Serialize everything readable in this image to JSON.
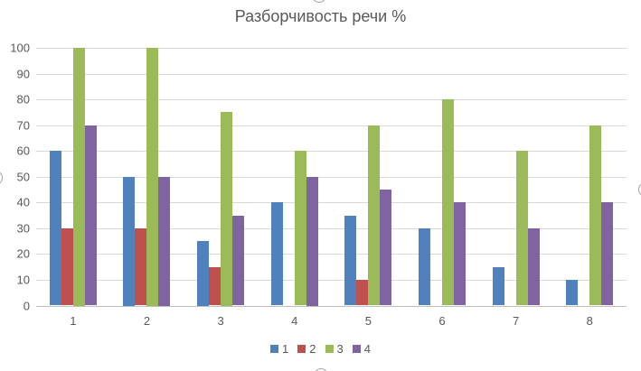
{
  "chart_data": {
    "type": "bar",
    "title": "Разборчивость речи %",
    "categories": [
      "1",
      "2",
      "3",
      "4",
      "5",
      "6",
      "7",
      "8"
    ],
    "series": [
      {
        "name": "1",
        "color": "#4F81BD",
        "values": [
          60,
          50,
          25,
          40,
          35,
          30,
          15,
          10
        ]
      },
      {
        "name": "2",
        "color": "#C0504D",
        "values": [
          30,
          30,
          15,
          0,
          10,
          0,
          0,
          0
        ]
      },
      {
        "name": "3",
        "color": "#9BBB59",
        "values": [
          100,
          100,
          75,
          60,
          70,
          80,
          60,
          70
        ]
      },
      {
        "name": "4",
        "color": "#8064A2",
        "values": [
          70,
          50,
          35,
          50,
          45,
          40,
          30,
          40
        ]
      }
    ],
    "ylim": [
      0,
      100
    ],
    "yticks": [
      0,
      10,
      20,
      30,
      40,
      50,
      60,
      70,
      80,
      90,
      100
    ],
    "grid": true,
    "legend_position": "bottom",
    "gridline_color": "#D9D9D9",
    "axis_line_color": "#BFBFBF",
    "text_color": "#595959"
  }
}
